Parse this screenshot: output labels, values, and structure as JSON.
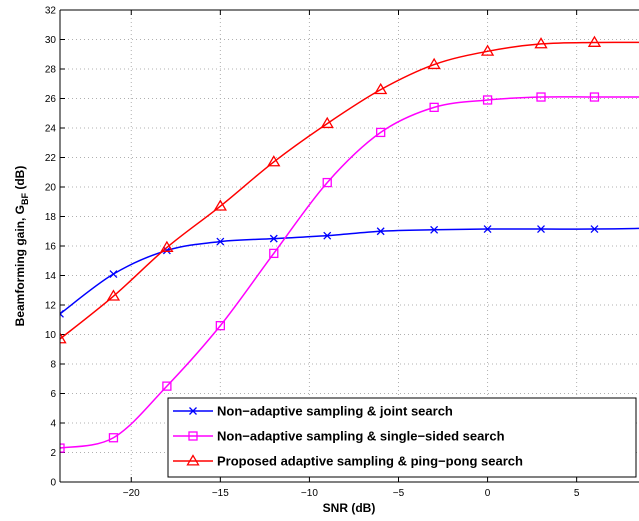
{
  "chart_data": {
    "type": "line",
    "title": "",
    "xlabel": "SNR (dB)",
    "ylabel": {
      "main": "Beamforming gain, G",
      "subscript": "BF",
      "suffix": " (dB)"
    },
    "xlim": [
      -24,
      8.5
    ],
    "ylim": [
      0,
      32
    ],
    "xticks": [
      -20,
      -15,
      -10,
      -5,
      0,
      5
    ],
    "xtick_labels": [
      "−20",
      "−15",
      "−10",
      "−5",
      "0",
      "5"
    ],
    "yticks": [
      0,
      2,
      4,
      6,
      8,
      10,
      12,
      14,
      16,
      18,
      20,
      22,
      24,
      26,
      28,
      30,
      32
    ],
    "ytick_labels": [
      "0",
      "2",
      "4",
      "6",
      "8",
      "10",
      "12",
      "14",
      "16",
      "18",
      "20",
      "22",
      "24",
      "26",
      "28",
      "30",
      "32"
    ],
    "grid": true,
    "legend_position": "bottom-right",
    "series": [
      {
        "name": "Non−adaptive sampling & joint search",
        "color": "#0000ff",
        "marker": "x",
        "x": [
          -24,
          -21,
          -18,
          -15,
          -12,
          -9,
          -6,
          -3,
          0,
          3,
          6,
          9
        ],
        "y": [
          11.4,
          14.1,
          15.7,
          16.3,
          16.5,
          16.7,
          17.0,
          17.1,
          17.15,
          17.15,
          17.15,
          17.2
        ]
      },
      {
        "name": "Non−adaptive sampling & single−sided search",
        "color": "#ff00ff",
        "marker": "square",
        "x": [
          -24,
          -21,
          -18,
          -15,
          -12,
          -9,
          -6,
          -3,
          0,
          3,
          6,
          9
        ],
        "y": [
          2.3,
          3.0,
          6.5,
          10.6,
          15.5,
          20.3,
          23.7,
          25.4,
          25.9,
          26.1,
          26.1,
          26.1
        ]
      },
      {
        "name": "Proposed adaptive sampling & ping−pong search",
        "color": "#ff0000",
        "marker": "triangle",
        "x": [
          -24,
          -21,
          -18,
          -15,
          -12,
          -9,
          -6,
          -3,
          0,
          3,
          6,
          9
        ],
        "y": [
          9.7,
          12.6,
          15.9,
          18.7,
          21.7,
          24.3,
          26.6,
          28.3,
          29.2,
          29.7,
          29.8,
          29.8
        ]
      }
    ]
  }
}
